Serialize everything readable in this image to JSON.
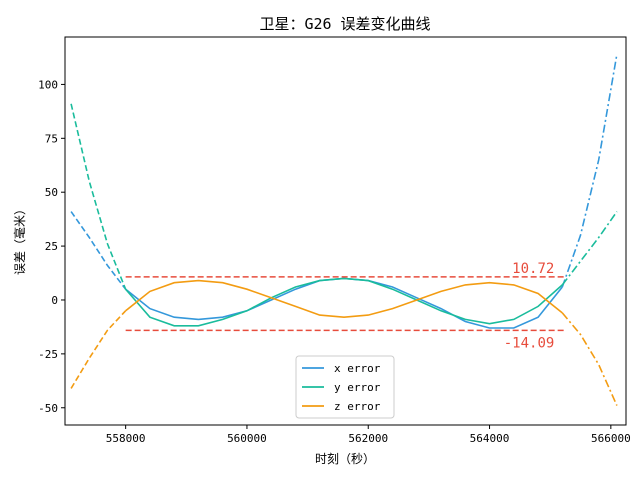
{
  "chart_data": {
    "type": "line",
    "title": "卫星：G26 误差变化曲线",
    "xlabel": "时刻（秒）",
    "ylabel": "误差（毫米）",
    "xlim": [
      557000,
      566250
    ],
    "ylim": [
      -58,
      122
    ],
    "xticks": [
      558000,
      560000,
      562000,
      564000,
      566000
    ],
    "yticks": [
      -50,
      -25,
      0,
      25,
      50,
      75,
      100
    ],
    "fit_range": [
      558000,
      565200
    ],
    "series": [
      {
        "name": "x error",
        "color": "#3498db",
        "x": [
          557100,
          557400,
          557700,
          558000,
          558400,
          558800,
          559200,
          559600,
          560000,
          560400,
          560800,
          561200,
          561600,
          562000,
          562400,
          562800,
          563200,
          563600,
          564000,
          564400,
          564800,
          565200,
          565500,
          565800,
          566100
        ],
        "y": [
          41,
          29,
          16,
          5,
          -4,
          -8,
          -9,
          -8,
          -5,
          0,
          5,
          9,
          10,
          9,
          6,
          1,
          -4,
          -10,
          -13,
          -13,
          -8,
          6,
          30,
          65,
          114
        ]
      },
      {
        "name": "y error",
        "color": "#1abc9c",
        "x": [
          557100,
          557400,
          557700,
          558000,
          558400,
          558800,
          559200,
          559600,
          560000,
          560400,
          560800,
          561200,
          561600,
          562000,
          562400,
          562800,
          563200,
          563600,
          564000,
          564400,
          564800,
          565200,
          565500,
          565800,
          566100
        ],
        "y": [
          91,
          55,
          26,
          5,
          -8,
          -12,
          -12,
          -9,
          -5,
          1,
          6,
          9,
          10,
          9,
          5,
          0,
          -5,
          -9,
          -11,
          -9,
          -3,
          7,
          18,
          29,
          41
        ]
      },
      {
        "name": "z error",
        "color": "#f39c12",
        "x": [
          557100,
          557400,
          557700,
          558000,
          558400,
          558800,
          559200,
          559600,
          560000,
          560400,
          560800,
          561200,
          561600,
          562000,
          562400,
          562800,
          563200,
          563600,
          564000,
          564400,
          564800,
          565200,
          565500,
          565800,
          566100
        ],
        "y": [
          -41,
          -27,
          -14,
          -5,
          4,
          8,
          9,
          8,
          5,
          1,
          -3,
          -7,
          -8,
          -7,
          -4,
          0,
          4,
          7,
          8,
          7,
          3,
          -6,
          -16,
          -30,
          -49
        ]
      }
    ],
    "thresholds": [
      {
        "value": 10.72,
        "label": "10.72",
        "color": "#e74c3c"
      },
      {
        "value": -14.09,
        "label": "-14.09",
        "color": "#e74c3c"
      }
    ],
    "legend_position": "bottom-center",
    "grid": false
  }
}
